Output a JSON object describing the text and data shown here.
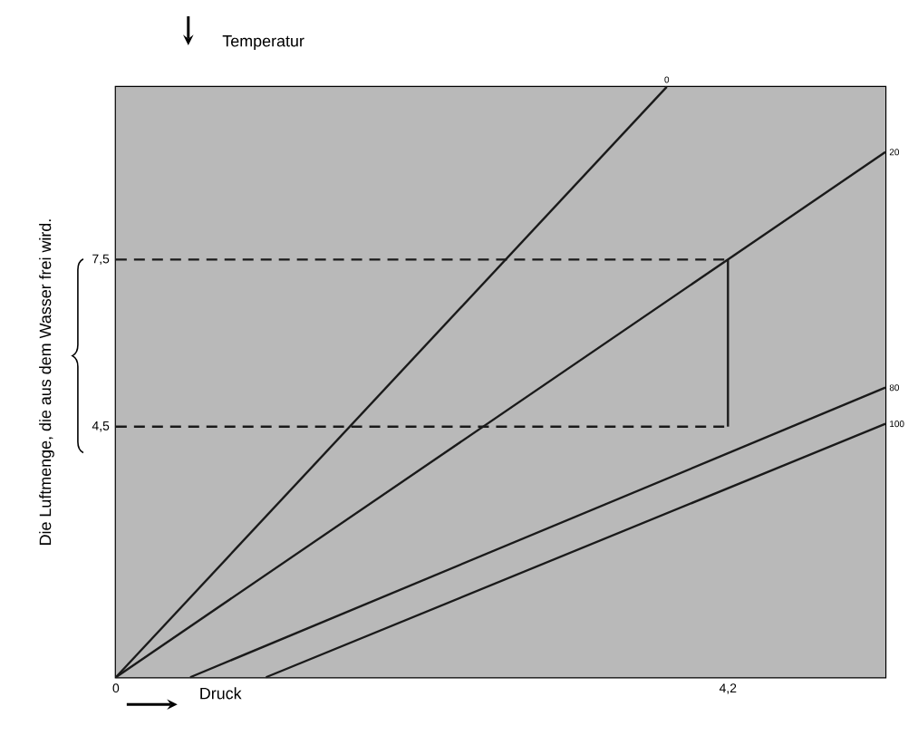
{
  "chart_data": {
    "type": "line",
    "ylabel": "Die Luftmenge, die aus dem Wasser frei wird.",
    "xlabel": "Druck",
    "annotations": [
      "Temperatur"
    ],
    "xlim": [
      0,
      5.28
    ],
    "ylim": [
      0,
      10.6
    ],
    "xticks": [
      {
        "value": 0,
        "label": "0"
      },
      {
        "value": 4.2,
        "label": "4,2"
      }
    ],
    "yticks": [
      {
        "value": 0,
        "label": null
      },
      {
        "value": 4.5,
        "label": "4,5"
      },
      {
        "value": 7.5,
        "label": "7,5"
      }
    ],
    "legend": false,
    "line_style": "solid",
    "marker": "none",
    "series": [
      {
        "name": "0",
        "color": "#1a1a1a",
        "x": [
          0,
          3.78
        ],
        "values": [
          0,
          10.6
        ]
      },
      {
        "name": "20",
        "color": "#1a1a1a",
        "x": [
          0,
          5.28
        ],
        "values": [
          0,
          9.43
        ]
      },
      {
        "name": "80",
        "color": "#1a1a1a",
        "x": [
          0.51,
          5.28
        ],
        "values": [
          0,
          5.2
        ]
      },
      {
        "name": "100",
        "color": "#1a1a1a",
        "x": [
          1.03,
          5.28
        ],
        "values": [
          0,
          4.55
        ]
      },
      {
        "color": "#1a1a1a",
        "line_style": "dashed",
        "x": [
          0,
          4.2
        ],
        "values": [
          7.5,
          7.5
        ]
      },
      {
        "color": "#1a1a1a",
        "line_style": "dashed",
        "x": [
          0,
          4.2
        ],
        "values": [
          4.5,
          4.5
        ]
      },
      {
        "color": "#1a1a1a",
        "x": [
          4.2,
          4.2
        ],
        "values": [
          4.5,
          7.5
        ]
      }
    ]
  }
}
